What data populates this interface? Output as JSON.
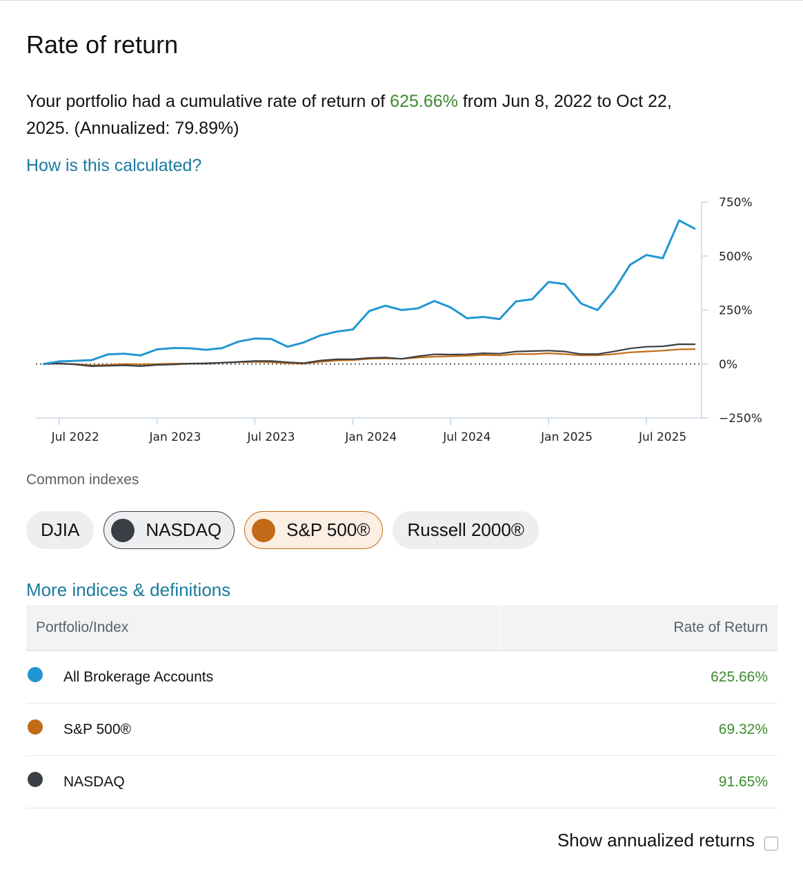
{
  "header": {
    "title": "Rate of return",
    "summary_prefix": "Your portfolio had a cumulative rate of return of ",
    "summary_value": "625.66%",
    "summary_suffix_line1": " from Jun 8, 2022 to Oct 22,",
    "summary_line2": "2025. (Annualized: 79.89%)",
    "how_link": "How is this calculated?"
  },
  "colors": {
    "portfolio": "#2196d3",
    "sp500": "#c26a17",
    "nasdaq": "#3a3f45",
    "positive": "#3d8a2e",
    "link": "#1b7a9c"
  },
  "chart_data": {
    "type": "line",
    "title": "",
    "xlabel": "",
    "ylabel": "",
    "ylim": [
      -250,
      750
    ],
    "yticks": [
      750,
      500,
      250,
      0,
      -250
    ],
    "ytick_labels": [
      "750%",
      "500%",
      "250%",
      "0%",
      "−250%"
    ],
    "xticks": [
      "Jul 2022",
      "Jan 2023",
      "Jul 2023",
      "Jan 2024",
      "Jul 2024",
      "Jan 2025",
      "Jul 2025"
    ],
    "x": [
      "2022-06",
      "2022-07",
      "2022-08",
      "2022-09",
      "2022-10",
      "2022-11",
      "2022-12",
      "2023-01",
      "2023-02",
      "2023-03",
      "2023-04",
      "2023-05",
      "2023-06",
      "2023-07",
      "2023-08",
      "2023-09",
      "2023-10",
      "2023-11",
      "2023-12",
      "2024-01",
      "2024-02",
      "2024-03",
      "2024-04",
      "2024-05",
      "2024-06",
      "2024-07",
      "2024-08",
      "2024-09",
      "2024-10",
      "2024-11",
      "2024-12",
      "2025-01",
      "2025-02",
      "2025-03",
      "2025-04",
      "2025-05",
      "2025-06",
      "2025-07",
      "2025-08",
      "2025-09",
      "2025-10"
    ],
    "zero_line": "dotted",
    "series": [
      {
        "name": "All Brokerage Accounts",
        "color": "#2196d3",
        "values": [
          0,
          12,
          15,
          18,
          45,
          48,
          40,
          68,
          74,
          73,
          66,
          74,
          104,
          118,
          116,
          80,
          100,
          132,
          150,
          160,
          245,
          270,
          250,
          258,
          292,
          262,
          212,
          218,
          208,
          290,
          300,
          380,
          370,
          280,
          250,
          340,
          460,
          505,
          490,
          665,
          625
        ]
      },
      {
        "name": "NASDAQ",
        "color": "#3a3f45",
        "values": [
          0,
          3,
          -2,
          -10,
          -8,
          -6,
          -10,
          -4,
          -2,
          2,
          2,
          6,
          10,
          14,
          14,
          8,
          4,
          16,
          22,
          22,
          28,
          30,
          24,
          36,
          45,
          44,
          45,
          50,
          48,
          58,
          60,
          62,
          58,
          46,
          46,
          58,
          72,
          80,
          82,
          92,
          91.65
        ]
      },
      {
        "name": "S&P 500®",
        "color": "#c26a17",
        "values": [
          0,
          2,
          0,
          -6,
          -4,
          0,
          -2,
          0,
          2,
          2,
          4,
          6,
          8,
          10,
          8,
          4,
          2,
          10,
          16,
          18,
          24,
          26,
          24,
          30,
          34,
          36,
          38,
          42,
          40,
          46,
          46,
          50,
          46,
          40,
          40,
          46,
          54,
          58,
          62,
          68,
          69.32
        ]
      }
    ]
  },
  "indexes": {
    "label": "Common indexes",
    "chips": [
      {
        "label": "DJIA",
        "selected": false
      },
      {
        "label": "NASDAQ",
        "selected": true
      },
      {
        "label": "S&P 500®",
        "selected": true
      },
      {
        "label": "Russell 2000®",
        "selected": false
      }
    ],
    "more_link": "More indices & definitions"
  },
  "table": {
    "headers": [
      "Portfolio/Index",
      "Rate of Return"
    ],
    "rows": [
      {
        "name": "All Brokerage Accounts",
        "value": "625.66%"
      },
      {
        "name": "S&P 500®",
        "value": "69.32%"
      },
      {
        "name": "NASDAQ",
        "value": "91.65%"
      }
    ]
  },
  "footer": {
    "annualized_label": "Show annualized returns"
  }
}
